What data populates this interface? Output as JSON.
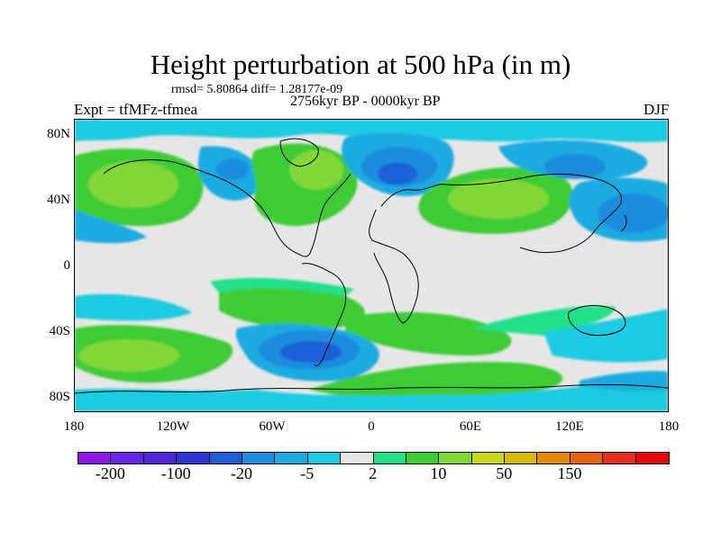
{
  "title": "Height perturbation at 500 hPa (in m)",
  "stats_line": "rmsd= 5.80864 diff= 1.28177e-09",
  "period_line": "2756kyr BP - 0000kyr BP",
  "experiment_label": "Expt = tfMFz-tfmea",
  "season_label": "DJF",
  "map": {
    "projection": "cylindrical equidistant",
    "lon_range": [
      -180,
      180
    ],
    "lat_range": [
      -90,
      90
    ],
    "y_ticks": [
      {
        "lat": 80,
        "label": "80N"
      },
      {
        "lat": 40,
        "label": "40N"
      },
      {
        "lat": 0,
        "label": "0"
      },
      {
        "lat": -40,
        "label": "40S"
      },
      {
        "lat": -80,
        "label": "80S"
      }
    ],
    "x_ticks": [
      {
        "lon": -180,
        "label": "180"
      },
      {
        "lon": -120,
        "label": "120W"
      },
      {
        "lon": -60,
        "label": "60W"
      },
      {
        "lon": 0,
        "label": "0"
      },
      {
        "lon": 60,
        "label": "60E"
      },
      {
        "lon": 120,
        "label": "120E"
      },
      {
        "lon": 180,
        "label": "180"
      }
    ],
    "anomaly_centers": [
      {
        "lon": -150,
        "lat": 45,
        "value": 12,
        "note": "North Pacific positive"
      },
      {
        "lon": -115,
        "lat": 52,
        "value": -6,
        "note": "western North America negative"
      },
      {
        "lon": -85,
        "lat": 55,
        "value": 6,
        "note": "Hudson Bay positive"
      },
      {
        "lon": -35,
        "lat": 60,
        "value": 15,
        "note": "North Atlantic positive"
      },
      {
        "lon": 10,
        "lat": 58,
        "value": -40,
        "note": "Northern Europe negative"
      },
      {
        "lon": 60,
        "lat": 40,
        "value": 15,
        "note": "Central Asia positive"
      },
      {
        "lon": 120,
        "lat": 55,
        "value": -12,
        "note": "Siberia negative"
      },
      {
        "lon": 150,
        "lat": 38,
        "value": -25,
        "note": "Northwest Pacific negative"
      },
      {
        "lon": -150,
        "lat": -55,
        "value": 20,
        "note": "South Pacific positive"
      },
      {
        "lon": -40,
        "lat": -55,
        "value": -40,
        "note": "South Atlantic negative"
      },
      {
        "lon": -50,
        "lat": -10,
        "value": 6,
        "note": "South America positive"
      },
      {
        "lon": 40,
        "lat": -55,
        "value": 8,
        "note": "Southern Indian Ocean positive"
      },
      {
        "lon": 170,
        "lat": -35,
        "value": -8,
        "note": "Tasman Sea negative"
      }
    ]
  },
  "colorbar": {
    "colors": [
      "#8c1ae6",
      "#6a24e6",
      "#4b27d8",
      "#2f35d2",
      "#1f5ed6",
      "#1f8cdc",
      "#1fabe1",
      "#1ccbe0",
      "#e6e6e6",
      "#22e08a",
      "#3ccc34",
      "#82d638",
      "#c6d820",
      "#d8b80a",
      "#e08a0a",
      "#e46414",
      "#e4301a",
      "#e00a0a"
    ],
    "labels": [
      {
        "boundary_index": 1,
        "text": "-200"
      },
      {
        "boundary_index": 3,
        "text": "-100"
      },
      {
        "boundary_index": 5,
        "text": "-20"
      },
      {
        "boundary_index": 7,
        "text": "-5"
      },
      {
        "boundary_index": 9,
        "text": "2"
      },
      {
        "boundary_index": 11,
        "text": "10"
      },
      {
        "boundary_index": 13,
        "text": "50"
      },
      {
        "boundary_index": 15,
        "text": "150"
      }
    ]
  }
}
